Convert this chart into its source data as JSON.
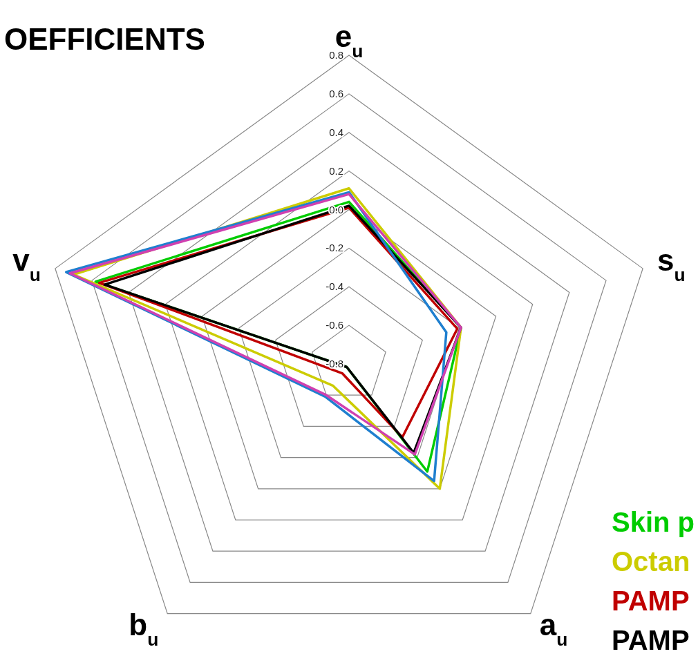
{
  "chart_data": {
    "type": "radar",
    "title": "OEFFICIENTS",
    "categories": [
      "e$_{u}$",
      "s$_{u}$",
      "a$_{u}$",
      "b$_{u}$",
      "v$_{u}$"
    ],
    "ylim": [
      -0.8,
      0.8
    ],
    "yticks": [
      -0.8,
      -0.6,
      -0.4,
      -0.2,
      {
        "value": 0,
        "label": "0.0"
      },
      0.2,
      0.4,
      0.6,
      0.8
    ],
    "grid": true,
    "legend": "bottom right",
    "series": [
      {
        "name": "Skin p",
        "color": "#00cc00",
        "values": [
          0.04,
          -0.19,
          -0.11,
          -0.78,
          0.58
        ]
      },
      {
        "name": "Octan",
        "color": "#cccc00",
        "values": [
          0.11,
          -0.19,
          0.0,
          -0.66,
          0.7
        ]
      },
      {
        "name": "PAMP",
        "color": "#c00000",
        "values": [
          0.01,
          -0.21,
          -0.33,
          -0.74,
          0.56
        ]
      },
      {
        "name": "PAMP",
        "color": "#000000",
        "values": [
          0.02,
          -0.19,
          -0.23,
          -0.78,
          0.53
        ]
      },
      {
        "color": "#1f7fcf",
        "values": [
          0.09,
          -0.27,
          -0.05,
          -0.59,
          0.74
        ]
      },
      {
        "color": "#d040b0",
        "values": [
          0.08,
          -0.19,
          -0.22,
          -0.6,
          0.72
        ]
      }
    ]
  }
}
